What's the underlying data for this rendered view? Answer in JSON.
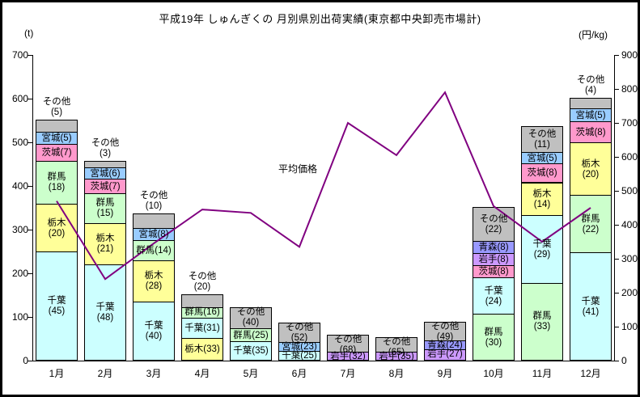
{
  "title": "平成19年 しゅんぎくの 月別県別出荷実績(東京都中央卸売市場計)",
  "line_label": "平均価格",
  "chart_data": {
    "type": "bar",
    "subtype": "stacked-bar-with-line",
    "title": "平成19年 しゅんぎくの 月別県別出荷実績(東京都中央卸売市場計)",
    "categories": [
      "1月",
      "2月",
      "3月",
      "4月",
      "5月",
      "6月",
      "7月",
      "8月",
      "9月",
      "10月",
      "11月",
      "12月"
    ],
    "left_axis": {
      "unit": "(t)",
      "min": 0,
      "max": 700,
      "step": 100,
      "ticks": [
        0,
        100,
        200,
        300,
        400,
        500,
        600,
        700
      ]
    },
    "right_axis": {
      "unit": "(円/kg)",
      "min": 0,
      "max": 900,
      "step": 100,
      "ticks": [
        0,
        100,
        200,
        300,
        400,
        500,
        600,
        700,
        800,
        900
      ]
    },
    "grid": false,
    "legend": "none (labels on segments)",
    "colors": {
      "千葉": "#CCFFFF",
      "栃木": "#FFFF99",
      "群馬": "#CCFFCC",
      "茨城": "#FF99CC",
      "宮城": "#99CCFF",
      "岩手": "#CC99FF",
      "青森": "#9999FF",
      "その他": "#C0C0C0",
      "line": "#800080",
      "border": "#000000"
    },
    "bars": [
      {
        "month": "1月",
        "total_t": 550,
        "segments": [
          {
            "name": "千葉",
            "pct": 45,
            "label": [
              "千葉",
              "(45)"
            ],
            "pos": "inside"
          },
          {
            "name": "栃木",
            "pct": 20,
            "label": [
              "栃木",
              "(20)"
            ],
            "pos": "inside"
          },
          {
            "name": "群馬",
            "pct": 18,
            "label": [
              "群馬",
              "(18)"
            ],
            "pos": "inside"
          },
          {
            "name": "茨城",
            "pct": 7,
            "label": [
              "茨城(7)"
            ],
            "pos": "inside"
          },
          {
            "name": "宮城",
            "pct": 5,
            "label": [
              "宮城(5)"
            ],
            "pos": "inside"
          },
          {
            "name": "その他",
            "pct": 5,
            "label": [
              "その他",
              "(5)"
            ],
            "pos": "above"
          }
        ]
      },
      {
        "month": "2月",
        "total_t": 455,
        "segments": [
          {
            "name": "千葉",
            "pct": 48,
            "label": [
              "千葉",
              "(48)"
            ],
            "pos": "inside"
          },
          {
            "name": "栃木",
            "pct": 21,
            "label": [
              "栃木",
              "(21)"
            ],
            "pos": "inside"
          },
          {
            "name": "群馬",
            "pct": 15,
            "label": [
              "群馬",
              "(15)"
            ],
            "pos": "inside"
          },
          {
            "name": "茨城",
            "pct": 7,
            "label": [
              "茨城(7)"
            ],
            "pos": "inside"
          },
          {
            "name": "宮城",
            "pct": 6,
            "label": [
              "宮城(6)"
            ],
            "pos": "inside"
          },
          {
            "name": "その他",
            "pct": 3,
            "label": [
              "その他",
              "(3)"
            ],
            "pos": "above"
          }
        ]
      },
      {
        "month": "3月",
        "total_t": 335,
        "segments": [
          {
            "name": "千葉",
            "pct": 40,
            "label": [
              "千葉",
              "(40)"
            ],
            "pos": "inside"
          },
          {
            "name": "栃木",
            "pct": 28,
            "label": [
              "栃木",
              "(28)"
            ],
            "pos": "inside"
          },
          {
            "name": "群馬",
            "pct": 14,
            "label": [
              "群馬(14)"
            ],
            "pos": "inside"
          },
          {
            "name": "宮城",
            "pct": 8,
            "label": [
              "宮城(8)"
            ],
            "pos": "inside"
          },
          {
            "name": "その他",
            "pct": 10,
            "label": [
              "その他",
              "(10)"
            ],
            "pos": "above"
          }
        ]
      },
      {
        "month": "4月",
        "total_t": 150,
        "segments": [
          {
            "name": "栃木",
            "pct": 33,
            "label": [
              "栃木(33)"
            ],
            "pos": "inside"
          },
          {
            "name": "千葉",
            "pct": 31,
            "label": [
              "千葉(31)"
            ],
            "pos": "inside"
          },
          {
            "name": "群馬",
            "pct": 16,
            "label": [
              "群馬(16)"
            ],
            "pos": "inside"
          },
          {
            "name": "その他",
            "pct": 20,
            "label": [
              "その他",
              "(20)"
            ],
            "pos": "above"
          }
        ]
      },
      {
        "month": "5月",
        "total_t": 120,
        "segments": [
          {
            "name": "千葉",
            "pct": 35,
            "label": [
              "千葉(35)"
            ],
            "pos": "inside"
          },
          {
            "name": "群馬",
            "pct": 25,
            "label": [
              "群馬(25)"
            ],
            "pos": "inside"
          },
          {
            "name": "その他",
            "pct": 40,
            "label": [
              "その他",
              "(40)"
            ],
            "pos": "inside"
          }
        ]
      },
      {
        "month": "6月",
        "total_t": 85,
        "segments": [
          {
            "name": "千葉",
            "pct": 25,
            "label": [
              "千葉(25)"
            ],
            "pos": "inside"
          },
          {
            "name": "宮城",
            "pct": 23,
            "label": [
              "宮城(23)"
            ],
            "pos": "inside"
          },
          {
            "name": "その他",
            "pct": 52,
            "label": [
              "その他",
              "(52)"
            ],
            "pos": "inside"
          }
        ]
      },
      {
        "month": "7月",
        "total_t": 57,
        "segments": [
          {
            "name": "岩手",
            "pct": 32,
            "label": [
              "岩手(32)"
            ],
            "pos": "inside"
          },
          {
            "name": "その他",
            "pct": 68,
            "label": [
              "その他",
              "(68)"
            ],
            "pos": "inside"
          }
        ]
      },
      {
        "month": "8月",
        "total_t": 52,
        "segments": [
          {
            "name": "岩手",
            "pct": 35,
            "label": [
              "岩手(35)"
            ],
            "pos": "inside"
          },
          {
            "name": "その他",
            "pct": 65,
            "label": [
              "その他",
              "(65)"
            ],
            "pos": "inside"
          }
        ]
      },
      {
        "month": "9月",
        "total_t": 87,
        "segments": [
          {
            "name": "岩手",
            "pct": 27,
            "label": [
              "岩手(27)"
            ],
            "pos": "inside"
          },
          {
            "name": "青森",
            "pct": 24,
            "label": [
              "青森(24)"
            ],
            "pos": "inside"
          },
          {
            "name": "その他",
            "pct": 49,
            "label": [
              "その他",
              "(49)"
            ],
            "pos": "inside"
          }
        ]
      },
      {
        "month": "10月",
        "total_t": 350,
        "segments": [
          {
            "name": "群馬",
            "pct": 30,
            "label": [
              "群馬",
              "(30)"
            ],
            "pos": "inside"
          },
          {
            "name": "千葉",
            "pct": 24,
            "label": [
              "千葉",
              "(24)"
            ],
            "pos": "inside"
          },
          {
            "name": "茨城",
            "pct": 8,
            "label": [
              "茨城(8)"
            ],
            "pos": "inside"
          },
          {
            "name": "岩手",
            "pct": 8,
            "label": [
              "岩手(8)"
            ],
            "pos": "inside"
          },
          {
            "name": "青森",
            "pct": 8,
            "label": [
              "青森(8)"
            ],
            "pos": "inside"
          },
          {
            "name": "その他",
            "pct": 22,
            "label": [
              "その他",
              "(22)"
            ],
            "pos": "inside"
          }
        ]
      },
      {
        "month": "11月",
        "total_t": 535,
        "segments": [
          {
            "name": "群馬",
            "pct": 33,
            "label": [
              "群馬",
              "(33)"
            ],
            "pos": "inside"
          },
          {
            "name": "千葉",
            "pct": 29,
            "label": [
              "千葉",
              "(29)"
            ],
            "pos": "inside"
          },
          {
            "name": "栃木",
            "pct": 14,
            "label": [
              "栃木",
              "(14)"
            ],
            "pos": "inside"
          },
          {
            "name": "茨城",
            "pct": 8,
            "label": [
              "茨城(8)"
            ],
            "pos": "inside"
          },
          {
            "name": "宮城",
            "pct": 5,
            "label": [
              "宮城(5)"
            ],
            "pos": "inside"
          },
          {
            "name": "その他",
            "pct": 11,
            "label": [
              "その他",
              "(11)"
            ],
            "pos": "inside"
          }
        ]
      },
      {
        "month": "12月",
        "total_t": 600,
        "segments": [
          {
            "name": "千葉",
            "pct": 41,
            "label": [
              "千葉",
              "(41)"
            ],
            "pos": "inside"
          },
          {
            "name": "群馬",
            "pct": 22,
            "label": [
              "群馬",
              "(22)"
            ],
            "pos": "inside"
          },
          {
            "name": "栃木",
            "pct": 20,
            "label": [
              "栃木",
              "(20)"
            ],
            "pos": "inside"
          },
          {
            "name": "茨城",
            "pct": 8,
            "label": [
              "茨城(8)"
            ],
            "pos": "inside"
          },
          {
            "name": "宮城",
            "pct": 5,
            "label": [
              "宮城(5)"
            ],
            "pos": "inside"
          },
          {
            "name": "その他",
            "pct": 4,
            "label": [
              "その他",
              "(4)"
            ],
            "pos": "above"
          }
        ]
      }
    ],
    "line": {
      "name": "平均価格",
      "unit": "円/kg",
      "values": [
        470,
        240,
        345,
        445,
        435,
        335,
        700,
        605,
        790,
        455,
        350,
        450
      ]
    }
  }
}
